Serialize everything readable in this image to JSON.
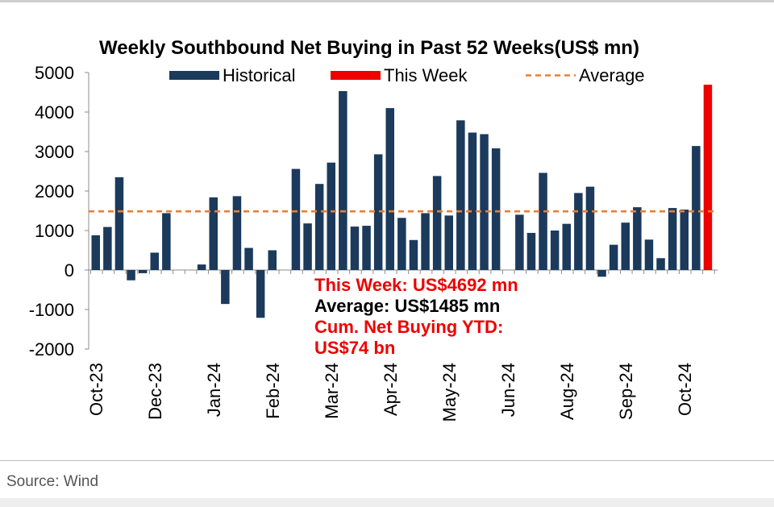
{
  "chart_data": {
    "type": "bar",
    "title": "Weekly Southbound Net Buying in Past 52 Weeks(US$ mn)",
    "ylim": [
      -2000,
      5000
    ],
    "yticks": [
      5000,
      4000,
      3000,
      2000,
      1000,
      0,
      -1000,
      -2000
    ],
    "xtick_labels": [
      "Oct-23",
      "Dec-23",
      "Jan-24",
      "Feb-24",
      "Mar-24",
      "Apr-24",
      "May-24",
      "Jun-24",
      "Aug-24",
      "Sep-24",
      "Oct-24"
    ],
    "xtick_positions": [
      0,
      5,
      10,
      15,
      20,
      25,
      30,
      35,
      40,
      45,
      50
    ],
    "legend": {
      "position": "top",
      "entries": [
        {
          "label": "Historical",
          "kind": "bar",
          "color": "#1b3a5c"
        },
        {
          "label": "This Week",
          "kind": "bar",
          "color": "#ee0000"
        },
        {
          "label": "Average",
          "kind": "dashed-line",
          "color": "#ed7d31"
        }
      ]
    },
    "series": [
      {
        "name": "Historical",
        "color": "#1b3a5c",
        "values": [
          880,
          1090,
          2350,
          -260,
          -80,
          440,
          1440,
          0,
          0,
          140,
          1840,
          -860,
          1870,
          560,
          -1210,
          500,
          0,
          2560,
          1180,
          2180,
          2720,
          4530,
          1100,
          1120,
          2930,
          4100,
          1320,
          760,
          1440,
          2380,
          1380,
          3790,
          3480,
          3440,
          3080,
          0,
          1400,
          940,
          2460,
          1000,
          1170,
          1950,
          2110,
          -170,
          640,
          1200,
          1590,
          770,
          300,
          1570,
          1530,
          3140
        ]
      },
      {
        "name": "This Week",
        "color": "#ee0000",
        "values": [
          4692
        ]
      }
    ],
    "average": 1485,
    "average_color": "#ed7d31",
    "annotations": [
      {
        "text": "This Week: US$4692 mn",
        "color": "#ee0000"
      },
      {
        "text": "Average: US$1485 mn",
        "color": "#000000"
      },
      {
        "text": "Cum. Net Buying YTD:",
        "color": "#ee0000"
      },
      {
        "text": "US$74 bn",
        "color": "#ee0000"
      }
    ]
  },
  "footer": {
    "source": "Source: Wind"
  }
}
